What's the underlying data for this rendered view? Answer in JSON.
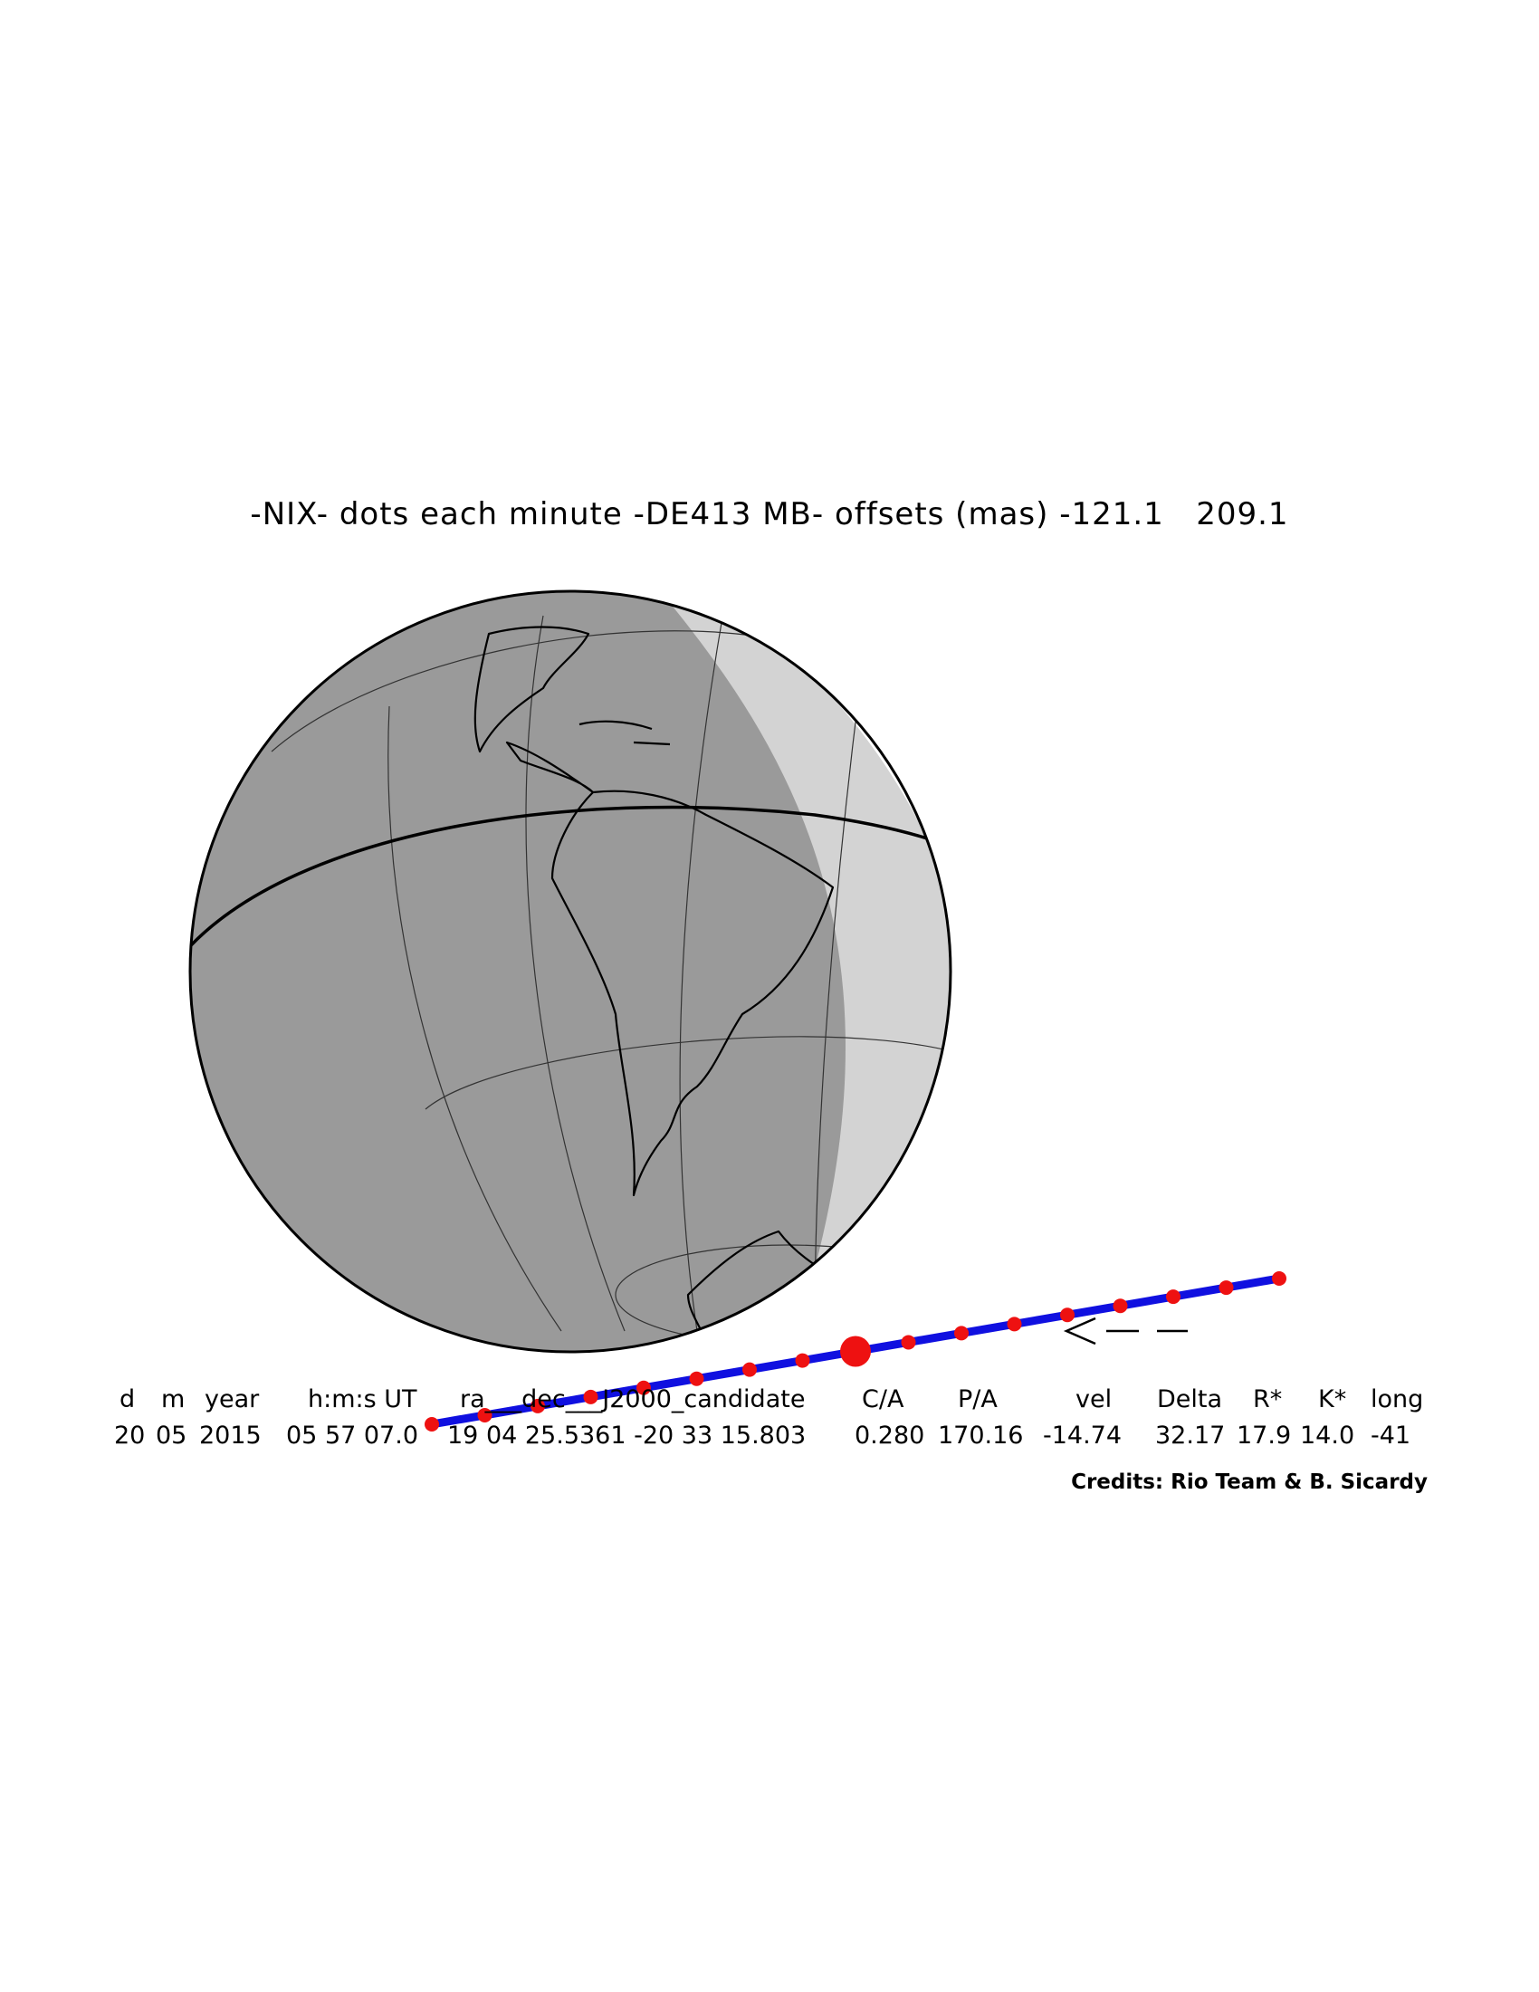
{
  "title": "-NIX- dots each minute -DE413 MB- offsets (mas) -121.1   209.1",
  "table": {
    "headers": [
      "d",
      "m",
      "year",
      "h:m:s UT",
      "ra___dec___J2000_candidate",
      "C/A",
      "P/A",
      "vel",
      "Delta",
      "R*",
      "K*",
      "long"
    ],
    "values": [
      "20",
      "05",
      "2015",
      "05 57 07.0",
      "19 04 25.5361 -20 33 15.803",
      "0.280",
      "170.16",
      "-14.74",
      "32.17",
      "17.9",
      "14.0",
      "-41"
    ]
  },
  "direction_marker": "<--",
  "credits": "Credits: Rio Team & B. Sicardy",
  "colors": {
    "night": "#9a9a9a",
    "twilight": "#d3d3d3",
    "day": "#ffffff",
    "track": "#1010e0",
    "dots": "#ee1111"
  },
  "track": {
    "dot_interval": "1 minute",
    "dot_count": 17,
    "closest_approach_dot_index": 8
  }
}
